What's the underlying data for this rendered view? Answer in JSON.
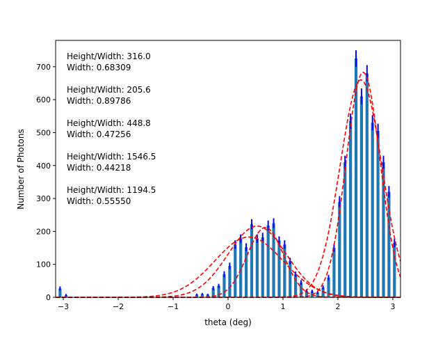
{
  "chart_data": {
    "type": "bar",
    "xlabel": "theta (deg)",
    "ylabel": "Number of Photons",
    "xlim": [
      -3.14,
      3.14
    ],
    "ylim": [
      0,
      780
    ],
    "xticks": [
      -3,
      -2,
      -1,
      0,
      1,
      2,
      3
    ],
    "yticks": [
      0,
      100,
      200,
      300,
      400,
      500,
      600,
      700
    ],
    "xtick_labels": [
      "−3",
      "−2",
      "−1",
      "0",
      "1",
      "2",
      "3"
    ],
    "ytick_labels": [
      "0",
      "100",
      "200",
      "300",
      "400",
      "500",
      "600",
      "700"
    ],
    "bar_color": "#1f77b4",
    "errorbar_color": "#0000ff",
    "fit_color": "#ff0000",
    "bars": [
      {
        "x": -3.06,
        "y": 27,
        "err": 6
      },
      {
        "x": -2.95,
        "y": 7,
        "err": 3
      },
      {
        "x": -0.57,
        "y": 8,
        "err": 3
      },
      {
        "x": -0.47,
        "y": 10,
        "err": 3
      },
      {
        "x": -0.37,
        "y": 8,
        "err": 3
      },
      {
        "x": -0.27,
        "y": 28,
        "err": 6
      },
      {
        "x": -0.17,
        "y": 35,
        "err": 6
      },
      {
        "x": -0.07,
        "y": 70,
        "err": 9
      },
      {
        "x": 0.03,
        "y": 95,
        "err": 10
      },
      {
        "x": 0.13,
        "y": 160,
        "err": 13
      },
      {
        "x": 0.23,
        "y": 178,
        "err": 13
      },
      {
        "x": 0.33,
        "y": 152,
        "err": 12
      },
      {
        "x": 0.43,
        "y": 222,
        "err": 15
      },
      {
        "x": 0.53,
        "y": 178,
        "err": 13
      },
      {
        "x": 0.63,
        "y": 182,
        "err": 14
      },
      {
        "x": 0.73,
        "y": 218,
        "err": 15
      },
      {
        "x": 0.83,
        "y": 225,
        "err": 15
      },
      {
        "x": 0.93,
        "y": 172,
        "err": 13
      },
      {
        "x": 1.03,
        "y": 160,
        "err": 13
      },
      {
        "x": 1.13,
        "y": 110,
        "err": 10
      },
      {
        "x": 1.23,
        "y": 70,
        "err": 8
      },
      {
        "x": 1.33,
        "y": 45,
        "err": 7
      },
      {
        "x": 1.43,
        "y": 20,
        "err": 5
      },
      {
        "x": 1.53,
        "y": 18,
        "err": 5
      },
      {
        "x": 1.63,
        "y": 15,
        "err": 4
      },
      {
        "x": 1.73,
        "y": 30,
        "err": 6
      },
      {
        "x": 1.83,
        "y": 60,
        "err": 8
      },
      {
        "x": 1.93,
        "y": 150,
        "err": 12
      },
      {
        "x": 2.03,
        "y": 290,
        "err": 17
      },
      {
        "x": 2.13,
        "y": 410,
        "err": 20
      },
      {
        "x": 2.23,
        "y": 535,
        "err": 23
      },
      {
        "x": 2.33,
        "y": 725,
        "err": 25
      },
      {
        "x": 2.43,
        "y": 610,
        "err": 24
      },
      {
        "x": 2.53,
        "y": 680,
        "err": 25
      },
      {
        "x": 2.63,
        "y": 530,
        "err": 23
      },
      {
        "x": 2.73,
        "y": 505,
        "err": 22
      },
      {
        "x": 2.83,
        "y": 410,
        "err": 20
      },
      {
        "x": 2.93,
        "y": 320,
        "err": 18
      },
      {
        "x": 3.03,
        "y": 165,
        "err": 13
      }
    ],
    "fits": [
      {
        "amplitude": 216,
        "center": 0.53,
        "sigma": 0.53
      },
      {
        "amplitude": 183,
        "center": 0.38,
        "sigma": 0.62
      },
      {
        "amplitude": 212,
        "center": 0.68,
        "sigma": 0.33
      },
      {
        "amplitude": 683,
        "center": 2.46,
        "sigma": 0.31
      },
      {
        "amplitude": 660,
        "center": 2.42,
        "sigma": 0.38
      }
    ],
    "annotations": [
      {
        "line1": "Height/Width: 316.0",
        "line2": "Width: 0.68309"
      },
      {
        "line1": "Height/Width: 205.6",
        "line2": "Width: 0.89786"
      },
      {
        "line1": "Height/Width: 448.8",
        "line2": "Width: 0.47256"
      },
      {
        "line1": "Height/Width: 1546.5",
        "line2": "Width: 0.44218"
      },
      {
        "line1": "Height/Width: 1194.5",
        "line2": "Width: 0.55550"
      }
    ]
  }
}
